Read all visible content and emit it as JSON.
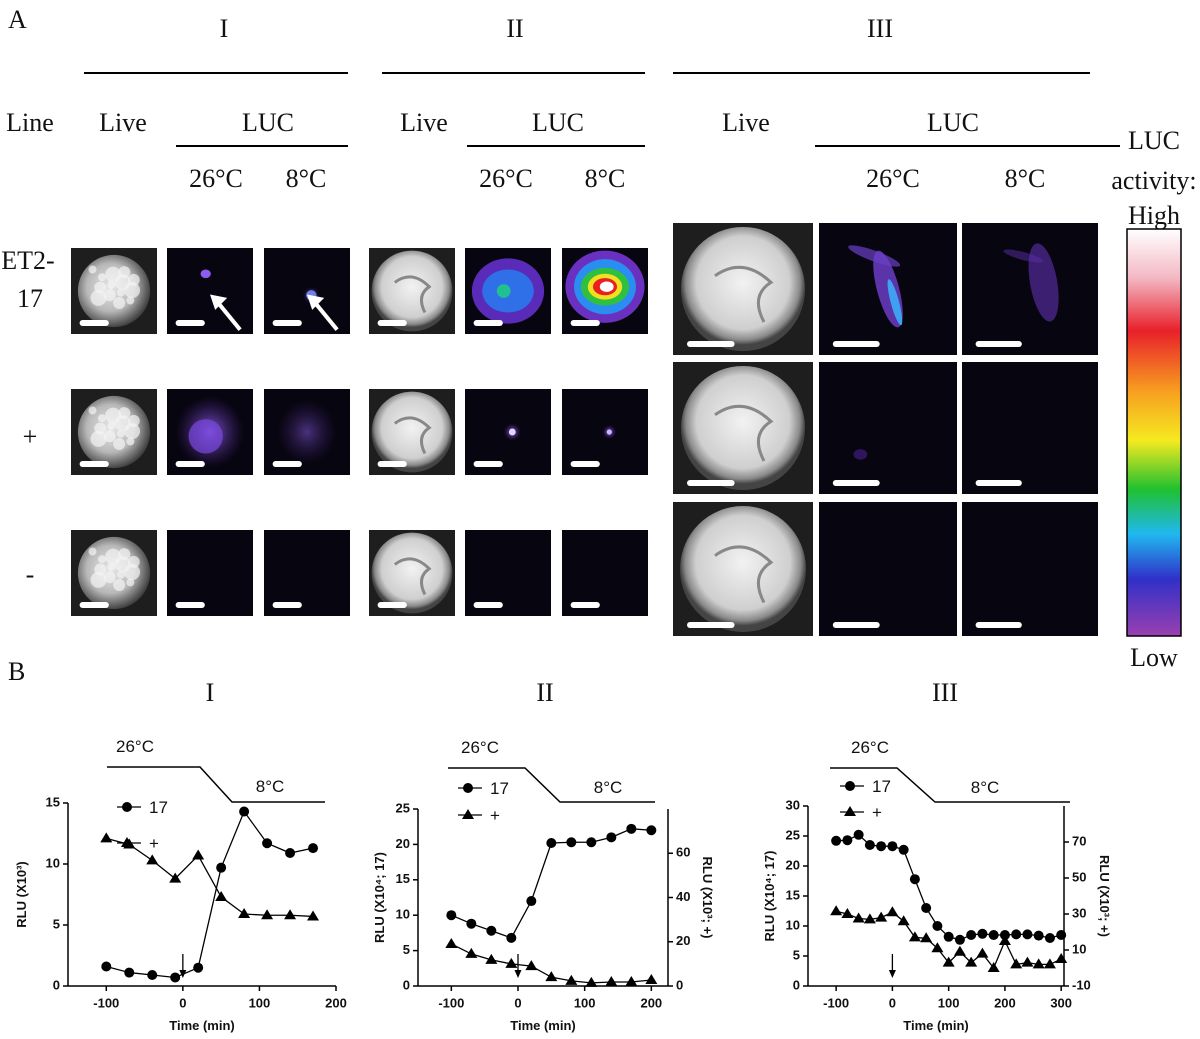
{
  "panel_a": {
    "label": "A",
    "line_header": "Line",
    "groups": [
      {
        "name": "I",
        "live": "Live",
        "luc": "LUC",
        "temps": [
          "26°C",
          "8°C"
        ]
      },
      {
        "name": "II",
        "live": "Live",
        "luc": "LUC",
        "temps": [
          "26°C",
          "8°C"
        ]
      },
      {
        "name": "III",
        "live": "Live",
        "luc": "LUC",
        "temps": [
          "26°C",
          "8°C"
        ]
      }
    ],
    "rows": [
      {
        "lines": [
          "ET2-",
          "17"
        ]
      },
      {
        "lines": [
          "+"
        ]
      },
      {
        "lines": [
          "-"
        ]
      }
    ],
    "colorbar": {
      "title_lines": [
        "LUC",
        "activity:"
      ],
      "high": "High",
      "low": "Low"
    }
  },
  "panel_b": {
    "label": "B"
  },
  "chart_data": [
    {
      "type": "line",
      "title": "I",
      "xlabel": "Time (min)",
      "ylabel": "RLU (X10³)",
      "temp_high": "26°C",
      "temp_low": "8°C",
      "arrow_x": 0,
      "xlim": [
        -150,
        200
      ],
      "xticks": [
        -100,
        0,
        100,
        200
      ],
      "ylim": [
        0,
        15
      ],
      "yticks": [
        0,
        5,
        10,
        15
      ],
      "x": [
        -100,
        -70,
        -40,
        -10,
        20,
        50,
        80,
        110,
        140,
        170
      ],
      "series": [
        {
          "name": "17",
          "color": "#000000",
          "marker": "circle",
          "values": [
            1.6,
            1.1,
            0.9,
            0.7,
            1.5,
            9.7,
            14.3,
            11.7,
            10.9,
            11.3
          ]
        },
        {
          "name": "+",
          "color": "#000000",
          "marker": "triangle",
          "values": [
            12.1,
            11.6,
            10.3,
            8.8,
            10.7,
            7.3,
            5.9,
            5.8,
            5.8,
            5.7
          ]
        }
      ]
    },
    {
      "type": "line",
      "title": "II",
      "xlabel": "Time (min)",
      "ylabel": "RLU (X10⁴; 17)",
      "y2label": "RLU (X10³; +)",
      "temp_high": "26°C",
      "temp_low": "8°C",
      "arrow_x": 0,
      "xlim": [
        -150,
        225
      ],
      "xticks": [
        -100,
        0,
        100,
        200
      ],
      "ylim": [
        0,
        25
      ],
      "yticks": [
        0,
        5,
        10,
        15,
        20,
        25
      ],
      "y2lim": [
        0,
        80
      ],
      "y2ticks": [
        0,
        20,
        40,
        60
      ],
      "x": [
        -100,
        -70,
        -40,
        -10,
        20,
        50,
        80,
        110,
        140,
        170,
        200
      ],
      "series": [
        {
          "name": "17",
          "color": "#000000",
          "marker": "circle",
          "values": [
            10,
            8.8,
            7.8,
            6.8,
            12,
            20.2,
            20.3,
            20.3,
            21,
            22.2,
            22
          ]
        },
        {
          "name": "+",
          "color": "#000000",
          "marker": "triangle",
          "axis": "y2",
          "values": [
            19,
            14.5,
            11.8,
            10,
            9,
            4,
            2.3,
            1.4,
            1.8,
            1.8,
            2.7
          ]
        }
      ]
    },
    {
      "type": "line",
      "title": "III",
      "xlabel": "Time (min)",
      "ylabel": "RLU (X10⁴; 17)",
      "y2label": "RLU (X10³; +)",
      "temp_high": "26°C",
      "temp_low": "8°C",
      "arrow_x": 0,
      "xlim": [
        -150,
        305
      ],
      "xticks": [
        -100,
        0,
        100,
        200,
        300
      ],
      "ylim": [
        0,
        30
      ],
      "yticks": [
        0,
        5,
        10,
        15,
        20,
        25,
        30
      ],
      "y2lim": [
        -10,
        90
      ],
      "y2ticks": [
        -10,
        10,
        30,
        50,
        70
      ],
      "x": [
        -100,
        -80,
        -60,
        -40,
        -20,
        0,
        20,
        40,
        60,
        80,
        100,
        120,
        140,
        160,
        180,
        200,
        220,
        240,
        260,
        280,
        300
      ],
      "series": [
        {
          "name": "17",
          "color": "#000000",
          "marker": "circle",
          "values": [
            24.2,
            24.3,
            25.2,
            23.5,
            23.3,
            23.3,
            22.7,
            17.8,
            13,
            10,
            8.2,
            7.7,
            8.5,
            8.7,
            8.5,
            8.5,
            8.6,
            8.6,
            8.4,
            8,
            8.5
          ]
        },
        {
          "name": "+",
          "color": "#000000",
          "marker": "triangle",
          "axis": "y2",
          "values": [
            31.5,
            30,
            27.5,
            27,
            28,
            31,
            26,
            17,
            16.5,
            11,
            3,
            9,
            3,
            8,
            0,
            15,
            2,
            3,
            2,
            2,
            5
          ]
        }
      ]
    }
  ]
}
